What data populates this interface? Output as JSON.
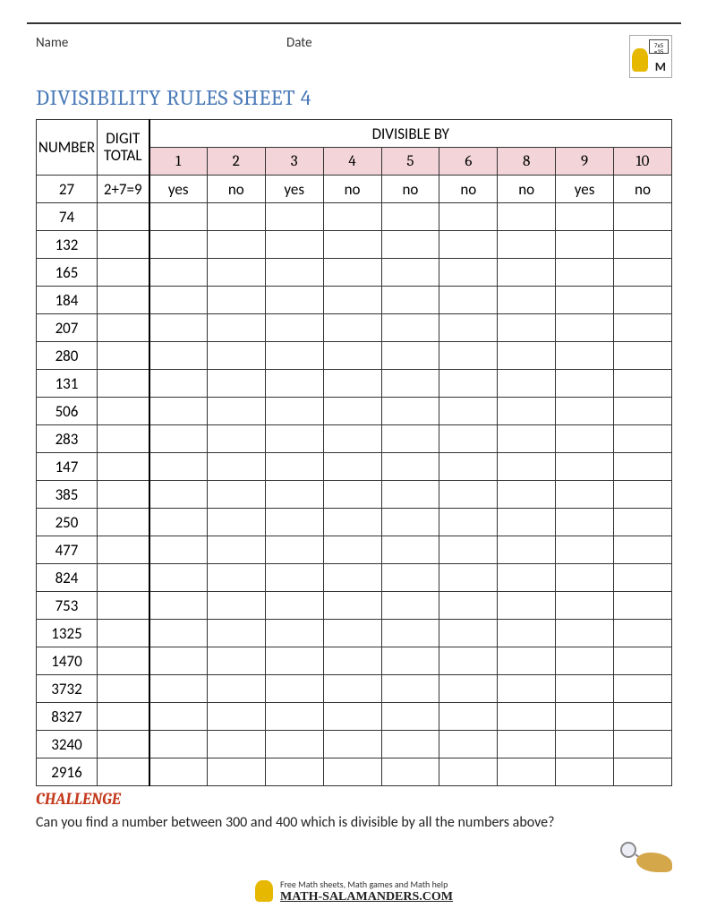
{
  "header": {
    "name_label": "Name",
    "date_label": "Date"
  },
  "title": "DIVISIBILITY RULES SHEET 4",
  "table": {
    "number_header": "NUMBER",
    "digit_total_header": "DIGIT TOTAL",
    "divisible_by_header": "DIVISIBLE BY",
    "divisors": [
      "1",
      "2",
      "3",
      "4",
      "5",
      "6",
      "8",
      "9",
      "10"
    ],
    "header_bg_color": "#f2d4d9",
    "rows": [
      {
        "number": "27",
        "digit_total": "2+7=9",
        "answers": [
          "yes",
          "no",
          "yes",
          "no",
          "no",
          "no",
          "no",
          "yes",
          "no"
        ]
      },
      {
        "number": "74",
        "digit_total": "",
        "answers": [
          "",
          "",
          "",
          "",
          "",
          "",
          "",
          "",
          ""
        ]
      },
      {
        "number": "132",
        "digit_total": "",
        "answers": [
          "",
          "",
          "",
          "",
          "",
          "",
          "",
          "",
          ""
        ]
      },
      {
        "number": "165",
        "digit_total": "",
        "answers": [
          "",
          "",
          "",
          "",
          "",
          "",
          "",
          "",
          ""
        ]
      },
      {
        "number": "184",
        "digit_total": "",
        "answers": [
          "",
          "",
          "",
          "",
          "",
          "",
          "",
          "",
          ""
        ]
      },
      {
        "number": "207",
        "digit_total": "",
        "answers": [
          "",
          "",
          "",
          "",
          "",
          "",
          "",
          "",
          ""
        ]
      },
      {
        "number": "280",
        "digit_total": "",
        "answers": [
          "",
          "",
          "",
          "",
          "",
          "",
          "",
          "",
          ""
        ]
      },
      {
        "number": "131",
        "digit_total": "",
        "answers": [
          "",
          "",
          "",
          "",
          "",
          "",
          "",
          "",
          ""
        ]
      },
      {
        "number": "506",
        "digit_total": "",
        "answers": [
          "",
          "",
          "",
          "",
          "",
          "",
          "",
          "",
          ""
        ]
      },
      {
        "number": "283",
        "digit_total": "",
        "answers": [
          "",
          "",
          "",
          "",
          "",
          "",
          "",
          "",
          ""
        ]
      },
      {
        "number": "147",
        "digit_total": "",
        "answers": [
          "",
          "",
          "",
          "",
          "",
          "",
          "",
          "",
          ""
        ]
      },
      {
        "number": "385",
        "digit_total": "",
        "answers": [
          "",
          "",
          "",
          "",
          "",
          "",
          "",
          "",
          ""
        ]
      },
      {
        "number": "250",
        "digit_total": "",
        "answers": [
          "",
          "",
          "",
          "",
          "",
          "",
          "",
          "",
          ""
        ]
      },
      {
        "number": "477",
        "digit_total": "",
        "answers": [
          "",
          "",
          "",
          "",
          "",
          "",
          "",
          "",
          ""
        ]
      },
      {
        "number": "824",
        "digit_total": "",
        "answers": [
          "",
          "",
          "",
          "",
          "",
          "",
          "",
          "",
          ""
        ]
      },
      {
        "number": "753",
        "digit_total": "",
        "answers": [
          "",
          "",
          "",
          "",
          "",
          "",
          "",
          "",
          ""
        ]
      },
      {
        "number": "1325",
        "digit_total": "",
        "answers": [
          "",
          "",
          "",
          "",
          "",
          "",
          "",
          "",
          ""
        ]
      },
      {
        "number": "1470",
        "digit_total": "",
        "answers": [
          "",
          "",
          "",
          "",
          "",
          "",
          "",
          "",
          ""
        ]
      },
      {
        "number": "3732",
        "digit_total": "",
        "answers": [
          "",
          "",
          "",
          "",
          "",
          "",
          "",
          "",
          ""
        ]
      },
      {
        "number": "8327",
        "digit_total": "",
        "answers": [
          "",
          "",
          "",
          "",
          "",
          "",
          "",
          "",
          ""
        ]
      },
      {
        "number": "3240",
        "digit_total": "",
        "answers": [
          "",
          "",
          "",
          "",
          "",
          "",
          "",
          "",
          ""
        ]
      },
      {
        "number": "2916",
        "digit_total": "",
        "answers": [
          "",
          "",
          "",
          "",
          "",
          "",
          "",
          "",
          ""
        ]
      }
    ]
  },
  "challenge": {
    "label": "CHALLENGE",
    "text": "Can you find a number between 300 and 400 which is divisible by all the numbers above?"
  },
  "footer": {
    "line1": "Free Math sheets, Math games and Math help",
    "line2": "MATH-SALAMANDERS.COM"
  },
  "colors": {
    "title_color": "#4a7ab8",
    "challenge_color": "#c43a1e",
    "border_color": "#333333"
  }
}
